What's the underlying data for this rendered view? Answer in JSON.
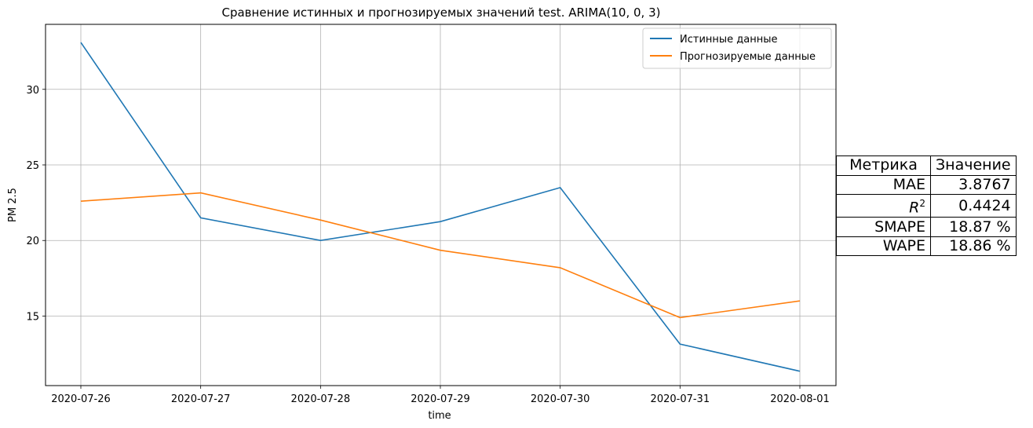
{
  "chart_data": {
    "type": "line",
    "title": "Сравнение истинных и прогнозируемых значений test. ARIMA(10, 0, 3)",
    "xlabel": "time",
    "ylabel": "PM 2.5",
    "categories": [
      "2020-07-26",
      "2020-07-27",
      "2020-07-28",
      "2020-07-29",
      "2020-07-30",
      "2020-07-31",
      "2020-08-01"
    ],
    "yticks": [
      15,
      20,
      25,
      30
    ],
    "ylim": [
      10.4,
      34.3
    ],
    "grid": true,
    "legend_position": "top-right",
    "series": [
      {
        "name": "Истинные данные",
        "color": "#1f77b4",
        "values": [
          33.1,
          21.5,
          20.0,
          21.25,
          23.5,
          13.15,
          11.35
        ]
      },
      {
        "name": "Прогнозируемые данные",
        "color": "#ff7f0e",
        "values": [
          22.6,
          23.15,
          21.35,
          19.35,
          18.2,
          14.9,
          16.0
        ]
      }
    ]
  },
  "metrics_table": {
    "headers": [
      "Метрика",
      "Значение"
    ],
    "rows": [
      {
        "metric": "MAE",
        "value": "3.8767"
      },
      {
        "metric": "R",
        "sup": "2",
        "value": "0.4424"
      },
      {
        "metric": "SMAPE",
        "value": "18.87 %"
      },
      {
        "metric": "WAPE",
        "value": "18.86 %"
      }
    ]
  }
}
